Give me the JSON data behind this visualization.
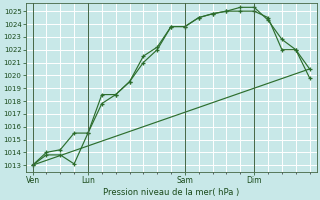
{
  "bg_color": "#c8e8e8",
  "grid_color": "#ffffff",
  "line_color": "#2d6e2d",
  "xlabel": "Pression niveau de la mer( hPa )",
  "ylim": [
    1012.5,
    1025.6
  ],
  "yticks": [
    1013,
    1014,
    1015,
    1016,
    1017,
    1018,
    1019,
    1020,
    1021,
    1022,
    1023,
    1024,
    1025
  ],
  "xtick_labels": [
    "Ven",
    "Lun",
    "Sam",
    "Dim"
  ],
  "xtick_positions": [
    0,
    4,
    11,
    16
  ],
  "xlim": [
    -0.5,
    20.5
  ],
  "series1": [
    [
      0,
      1013.0
    ],
    [
      1,
      1013.8
    ],
    [
      2,
      1013.8
    ],
    [
      3,
      1013.1
    ],
    [
      4,
      1015.5
    ],
    [
      5,
      1017.8
    ],
    [
      6,
      1018.5
    ],
    [
      7,
      1019.5
    ],
    [
      8,
      1021.0
    ],
    [
      9,
      1022.0
    ],
    [
      10,
      1023.8
    ],
    [
      11,
      1023.8
    ],
    [
      12,
      1024.5
    ],
    [
      13,
      1024.8
    ],
    [
      14,
      1025.0
    ],
    [
      15,
      1025.0
    ],
    [
      16,
      1025.0
    ],
    [
      17,
      1024.5
    ],
    [
      18,
      1022.0
    ],
    [
      19,
      1022.0
    ],
    [
      20,
      1020.5
    ]
  ],
  "series2": [
    [
      0,
      1013.0
    ],
    [
      1,
      1014.0
    ],
    [
      2,
      1014.2
    ],
    [
      3,
      1015.5
    ],
    [
      4,
      1015.5
    ],
    [
      5,
      1018.5
    ],
    [
      6,
      1018.5
    ],
    [
      7,
      1019.5
    ],
    [
      8,
      1021.5
    ],
    [
      9,
      1022.2
    ],
    [
      10,
      1023.8
    ],
    [
      11,
      1023.8
    ],
    [
      12,
      1024.5
    ],
    [
      13,
      1024.8
    ],
    [
      14,
      1025.0
    ],
    [
      15,
      1025.3
    ],
    [
      16,
      1025.3
    ],
    [
      17,
      1024.3
    ],
    [
      18,
      1022.8
    ],
    [
      19,
      1022.0
    ],
    [
      20,
      1019.8
    ]
  ],
  "series3": [
    [
      0,
      1013.0
    ],
    [
      20,
      1020.5
    ]
  ]
}
